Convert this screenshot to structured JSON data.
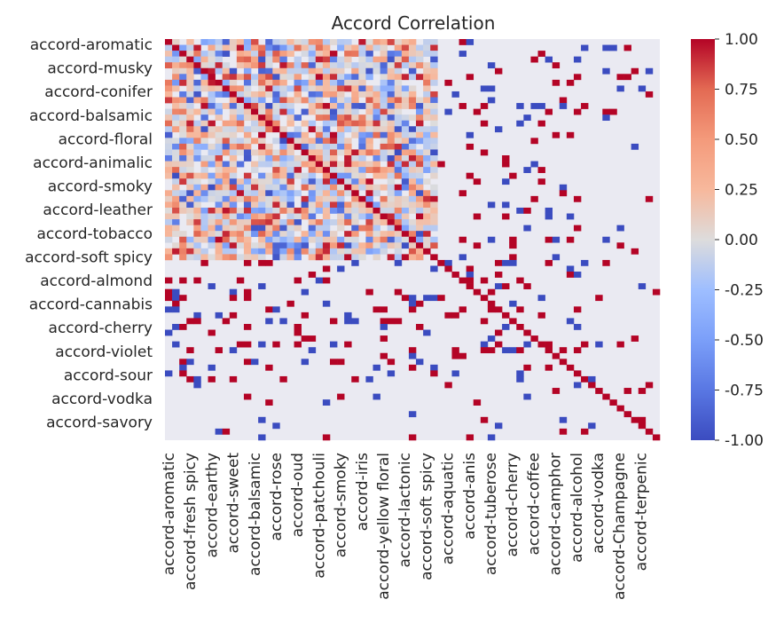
{
  "chart_data": {
    "type": "heatmap",
    "title": "Accord Correlation",
    "colormap": "coolwarm",
    "colorbar": {
      "min": -1.0,
      "max": 1.0,
      "ticks": [
        "1.00",
        "0.75",
        "0.50",
        "0.25",
        "0.00",
        "-0.25",
        "-0.50",
        "-0.75",
        "-1.00"
      ]
    },
    "ytick_labels": [
      "accord-aromatic",
      "accord-musky",
      "accord-conifer",
      "accord-balsamic",
      "accord-floral",
      "accord-animalic",
      "accord-smoky",
      "accord-leather",
      "accord-tobacco",
      "accord-soft spicy",
      "accord-almond",
      "accord-cannabis",
      "accord-cherry",
      "accord-violet",
      "accord-sour",
      "accord-vodka",
      "accord-savory"
    ],
    "xtick_labels": [
      "accord-aromatic",
      "accord-fresh spicy",
      "accord-earthy",
      "accord-sweet",
      "accord-balsamic",
      "accord-rose",
      "accord-oud",
      "accord-patchouli",
      "accord-smoky",
      "accord-iris",
      "accord-yellow floral",
      "accord-lactonic",
      "accord-soft spicy",
      "accord-aquatic",
      "accord-anis",
      "accord-tuberose",
      "accord-cherry",
      "accord-coffee",
      "accord-camphor",
      "accord-alcohol",
      "accord-vodka",
      "accord-Champagne",
      "accord-terpenic"
    ],
    "n_rows": 69,
    "n_cols": 69,
    "grid": false,
    "background": "#eaeaf2"
  }
}
